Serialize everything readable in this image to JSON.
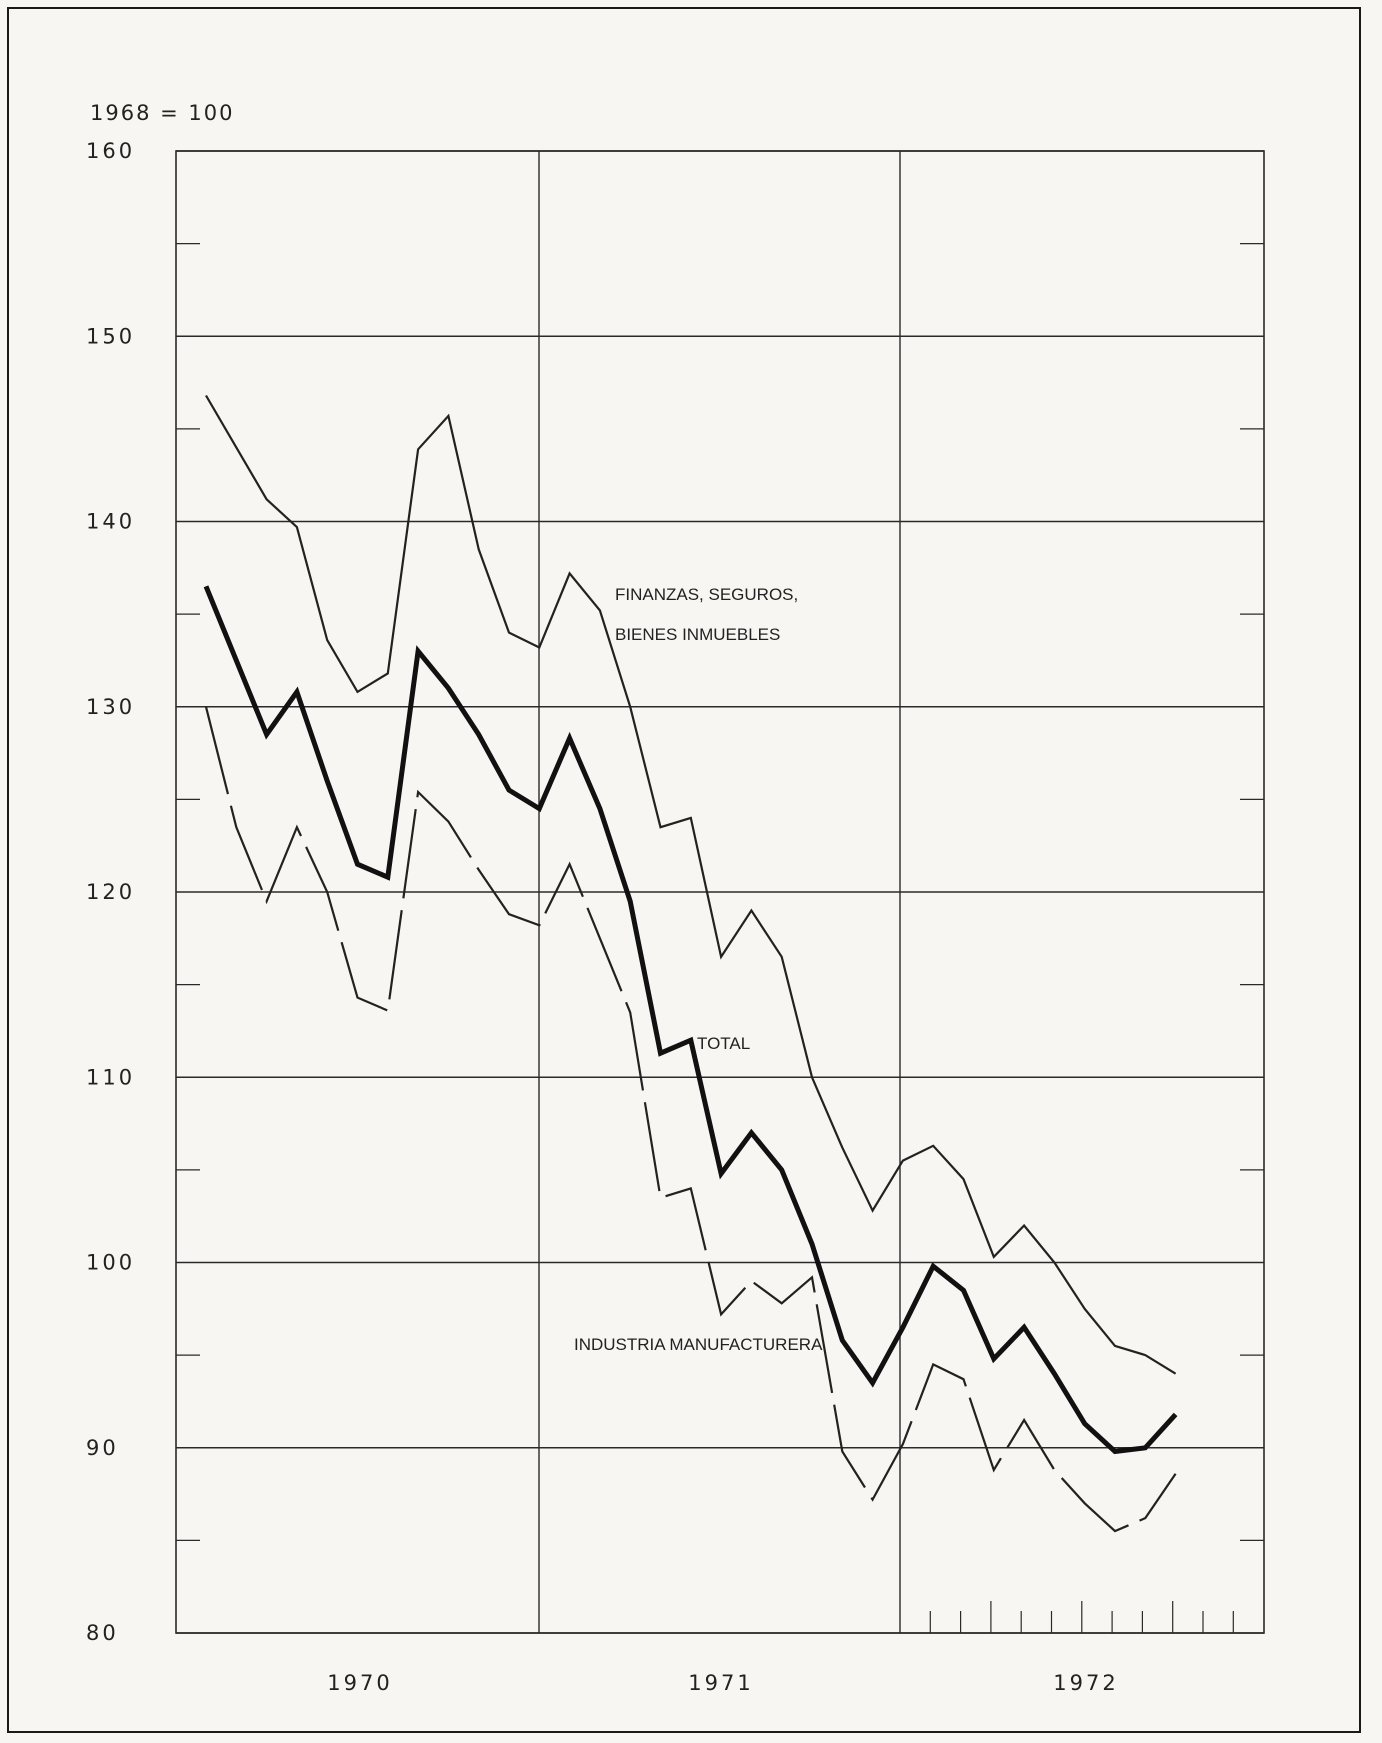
{
  "chart_data": {
    "type": "line",
    "unit_label": "1968 = 100",
    "y_ticks": [
      "160",
      "150",
      "140",
      "130",
      "120",
      "110",
      "100",
      "90",
      "80"
    ],
    "ylim": [
      80,
      160
    ],
    "x_ticks": [
      "1970",
      "1971",
      "1972"
    ],
    "grid": "on",
    "x": [
      "1970-01",
      "1970-02",
      "1970-03",
      "1970-04",
      "1970-05",
      "1970-06",
      "1970-07",
      "1970-08",
      "1970-09",
      "1970-10",
      "1970-11",
      "1970-12",
      "1971-01",
      "1971-02",
      "1971-03",
      "1971-04",
      "1971-05",
      "1971-06",
      "1971-07",
      "1971-08",
      "1971-09",
      "1971-10",
      "1971-11",
      "1971-12",
      "1972-01",
      "1972-02",
      "1972-03",
      "1972-04",
      "1972-05",
      "1972-06",
      "1972-07",
      "1972-08",
      "1972-09"
    ],
    "series": [
      {
        "name": "FINANZAS, SEGUROS, BIENES INMUEBLES",
        "style": "thin",
        "values": [
          146.8,
          144,
          141.2,
          139.7,
          133.6,
          130.8,
          131.8,
          143.9,
          145.7,
          138.5,
          134,
          133.2,
          137.2,
          135.2,
          130,
          123.5,
          124,
          116.5,
          119,
          116.5,
          110,
          106.2,
          102.8,
          105.5,
          106.3,
          104.5,
          100.3,
          102,
          100,
          97.5,
          95.5,
          95,
          94
        ]
      },
      {
        "name": "TOTAL",
        "style": "thick",
        "values": [
          136.5,
          132.5,
          128.5,
          130.8,
          126,
          121.5,
          120.8,
          133,
          131,
          128.5,
          125.5,
          124.5,
          128.3,
          124.5,
          119.5,
          111.3,
          112,
          104.8,
          107,
          105,
          101,
          95.8,
          93.5,
          96.5,
          99.8,
          98.5,
          94.8,
          96.5,
          94,
          91.3,
          89.8,
          90,
          91.8
        ]
      },
      {
        "name": "INDUSTRIA MANUFACTURERA",
        "style": "dashed",
        "values": [
          130,
          123.5,
          119.5,
          123.5,
          120,
          114.3,
          113.6,
          125.4,
          123.8,
          121.2,
          118.8,
          118.2,
          121.5,
          117.5,
          113.5,
          103.5,
          104,
          97.2,
          99,
          97.8,
          99.2,
          89.8,
          87.2,
          90.2,
          94.5,
          93.7,
          88.8,
          91.5,
          88.8,
          87,
          85.5,
          86.2,
          88.6
        ]
      }
    ]
  }
}
